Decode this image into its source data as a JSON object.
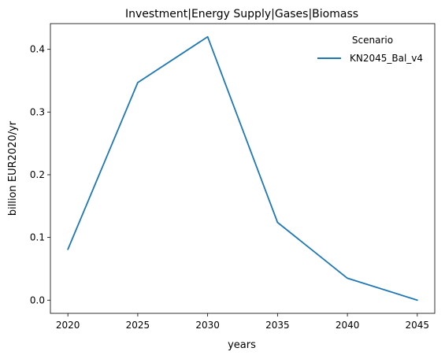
{
  "chart_data": {
    "type": "line",
    "title": "Investment|Energy Supply|Gases|Biomass",
    "xlabel": "years",
    "ylabel": "billion EUR2020/yr",
    "x": [
      2020,
      2025,
      2030,
      2035,
      2040,
      2045
    ],
    "x_ticks": [
      "2020",
      "2025",
      "2030",
      "2035",
      "2040",
      "2045"
    ],
    "y_ticks": [
      "0.0",
      "0.1",
      "0.2",
      "0.3",
      "0.4"
    ],
    "xlim": [
      2018.75,
      2046.25
    ],
    "ylim": [
      -0.021,
      0.441
    ],
    "grid": false,
    "legend": {
      "title": "Scenario",
      "position": "top-right"
    },
    "series": [
      {
        "name": "KN2045_Bal_v4",
        "color": "#1f77b4",
        "values": [
          0.081,
          0.347,
          0.42,
          0.124,
          0.035,
          0.0
        ]
      }
    ]
  }
}
